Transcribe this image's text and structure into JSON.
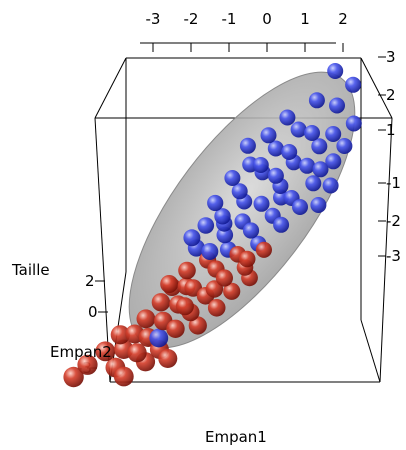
{
  "chart_data": {
    "type": "scatter",
    "projection": "3d",
    "axes": {
      "x": {
        "label": "Empan1",
        "ticks": [
          "-3",
          "-2",
          "-1",
          "0",
          "1",
          "2"
        ],
        "range": [
          -3.5,
          3.0
        ]
      },
      "y": {
        "label": "Empan2",
        "ticks": [
          "2",
          "0",
          "-3"
        ]
      },
      "z": {
        "label": "Taille",
        "ticks": [
          "3",
          "2",
          "1",
          "0",
          "-1",
          "-2",
          "-3"
        ],
        "range": [
          -3.5,
          3.5
        ]
      }
    },
    "ellipsoid": {
      "shown": true,
      "color": "#bdbdbd"
    },
    "bounding_box": true,
    "series": [
      {
        "color": "#2f3fe0",
        "points": [
          [
            1.6,
            2.8
          ],
          [
            2.2,
            2.3
          ],
          [
            0.6,
            2.0
          ],
          [
            1.9,
            1.9
          ],
          [
            1.3,
            2.2
          ],
          [
            2.5,
            1.3
          ],
          [
            1.0,
            1.6
          ],
          [
            0.2,
            1.7
          ],
          [
            -0.3,
            1.6
          ],
          [
            0.5,
            1.3
          ],
          [
            1.4,
            1.4
          ],
          [
            2.0,
            1.2
          ],
          [
            0.9,
            1.1
          ],
          [
            -0.1,
            1.1
          ],
          [
            1.7,
            1.0
          ],
          [
            2.4,
            0.8
          ],
          [
            0.3,
            0.8
          ],
          [
            1.1,
            0.8
          ],
          [
            -0.5,
            0.9
          ],
          [
            0.7,
            0.6
          ],
          [
            1.5,
            0.6
          ],
          [
            2.2,
            0.5
          ],
          [
            -0.2,
            0.5
          ],
          [
            0.0,
            0.2
          ],
          [
            0.9,
            0.3
          ],
          [
            1.8,
            0.1
          ],
          [
            2.3,
            -0.1
          ],
          [
            -0.8,
            0.4
          ],
          [
            -0.5,
            0.0
          ],
          [
            0.5,
            0.0
          ],
          [
            1.3,
            -0.1
          ],
          [
            -0.9,
            -0.1
          ],
          [
            0.1,
            -0.3
          ],
          [
            0.9,
            -0.4
          ],
          [
            1.6,
            -0.4
          ],
          [
            -1.2,
            -0.3
          ],
          [
            -0.3,
            -0.5
          ],
          [
            0.4,
            -0.6
          ],
          [
            1.2,
            -0.7
          ],
          [
            2.1,
            -0.5
          ],
          [
            -0.6,
            -0.8
          ],
          [
            0.7,
            -1.0
          ],
          [
            -0.1,
            -0.9
          ],
          [
            -1.0,
            -0.6
          ],
          [
            1.0,
            0.0
          ],
          [
            0.2,
            1.0
          ],
          [
            1.9,
            0.4
          ],
          [
            -0.4,
            -0.2
          ],
          [
            -1.4,
            -2.6
          ]
        ]
      },
      {
        "color": "#c8392b",
        "points": [
          [
            -0.6,
            -1.0
          ],
          [
            0.2,
            -1.1
          ],
          [
            0.9,
            -1.2
          ],
          [
            -1.1,
            -1.1
          ],
          [
            -0.3,
            -1.3
          ],
          [
            0.5,
            -1.5
          ],
          [
            -1.4,
            -1.4
          ],
          [
            -0.8,
            -1.6
          ],
          [
            0.0,
            -1.6
          ],
          [
            0.7,
            -1.8
          ],
          [
            -1.6,
            -1.7
          ],
          [
            -1.1,
            -1.9
          ],
          [
            -0.4,
            -1.9
          ],
          [
            0.3,
            -2.0
          ],
          [
            -1.9,
            -2.0
          ],
          [
            -1.4,
            -2.2
          ],
          [
            -0.7,
            -2.2
          ],
          [
            0.0,
            -2.3
          ],
          [
            -2.1,
            -2.3
          ],
          [
            -1.7,
            -2.5
          ],
          [
            -1.0,
            -2.5
          ],
          [
            -0.4,
            -2.6
          ],
          [
            -2.3,
            -2.6
          ],
          [
            -1.9,
            -2.8
          ],
          [
            -1.3,
            -2.9
          ],
          [
            -2.4,
            -3.0
          ],
          [
            -1.6,
            -3.1
          ],
          [
            -1.0,
            -3.2
          ],
          [
            -2.1,
            -3.3
          ],
          [
            -0.9,
            -2.0
          ],
          [
            -0.2,
            -1.8
          ],
          [
            -1.5,
            -1.3
          ],
          [
            0.5,
            -1.3
          ],
          [
            -2.5,
            -2.2
          ],
          [
            -3.2,
            -2.7
          ],
          [
            -2.8,
            -2.5
          ],
          [
            -3.5,
            -2.9
          ],
          [
            -1.0,
            -1.5
          ]
        ]
      }
    ]
  }
}
